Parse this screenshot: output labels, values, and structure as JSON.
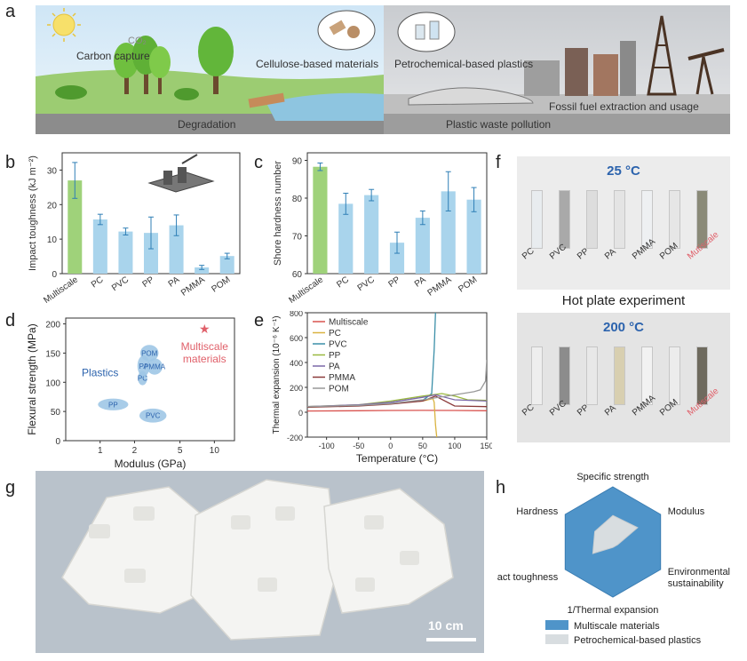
{
  "panel_labels": {
    "a": "a",
    "b": "b",
    "c": "c",
    "d": "d",
    "e": "e",
    "f": "f",
    "g": "g",
    "h": "h"
  },
  "panel_a": {
    "carbon_capture": "Carbon capture",
    "cellulose": "Cellulose-based materials",
    "petrochemical": "Petrochemical-based plastics",
    "degradation": "Degradation",
    "waste": "Plastic waste pollution",
    "fossil": "Fossil fuel extraction and usage",
    "co2": "CO₂"
  },
  "panel_f": {
    "temp_top": "25 °C",
    "temp_bottom": "200 °C",
    "hot_plate": "Hot plate experiment",
    "samples": [
      "PC",
      "PVC",
      "PP",
      "PA",
      "PMMA",
      "POM",
      "Mutiscale"
    ]
  },
  "panel_g": {
    "scale": "10 cm"
  },
  "colors": {
    "multiscale": "#9fd27a",
    "plastics": "#a9d4ec",
    "multiscale_radar": "#4f94c9",
    "plastics_radar": "#d8dde0",
    "accent_red": "#e0606a",
    "blue_text": "#2c63ad"
  },
  "chart_data": [
    {
      "id": "b",
      "type": "bar",
      "ylabel": "Impact toughness (kJ m⁻²)",
      "categories": [
        "Multiscale",
        "PC",
        "PVC",
        "PP",
        "PA",
        "PMMA",
        "POM"
      ],
      "values": [
        27,
        15.7,
        12.2,
        11.8,
        14,
        1.8,
        5.1
      ],
      "errors": [
        5.2,
        1.5,
        1.0,
        4.6,
        3.0,
        0.6,
        0.8
      ],
      "ylim": [
        0,
        35
      ],
      "yticks": [
        0,
        10,
        20,
        30
      ]
    },
    {
      "id": "c",
      "type": "bar",
      "ylabel": "Shore hardness number",
      "categories": [
        "Multiscale",
        "PC",
        "PVC",
        "PP",
        "PA",
        "PMMA",
        "POM"
      ],
      "values": [
        88.3,
        78.5,
        80.8,
        68.2,
        74.8,
        81.8,
        79.6
      ],
      "errors": [
        1.0,
        2.8,
        1.5,
        2.8,
        1.8,
        5.2,
        3.2
      ],
      "ylim": [
        60,
        92
      ],
      "yticks": [
        60,
        70,
        80,
        90
      ]
    },
    {
      "id": "d",
      "type": "scatter",
      "xlabel": "Modulus (GPa)",
      "ylabel": "Flexural strength (MPa)",
      "xscale": "log",
      "xlim": [
        0.5,
        15
      ],
      "ylim": [
        0,
        210
      ],
      "xticks": [
        1,
        2,
        5,
        10
      ],
      "yticks": [
        0,
        50,
        100,
        150,
        200
      ],
      "regions": [
        {
          "name": "PP",
          "x": 1.3,
          "y": 62,
          "rx_lo": 0.95,
          "rx_hi": 1.75,
          "ry": 10
        },
        {
          "name": "PVC",
          "x": 2.9,
          "y": 43,
          "rx_lo": 2.2,
          "rx_hi": 3.8,
          "ry": 12
        },
        {
          "name": "PC",
          "x": 2.35,
          "y": 107,
          "rx_lo": 2.15,
          "rx_hi": 2.6,
          "ry": 12
        },
        {
          "name": "PA",
          "x": 2.4,
          "y": 128,
          "rx_lo": 2.15,
          "rx_hi": 2.75,
          "ry": 18
        },
        {
          "name": "PMMA",
          "x": 3.0,
          "y": 127,
          "rx_lo": 2.55,
          "rx_hi": 3.5,
          "ry": 14
        },
        {
          "name": "POM",
          "x": 2.7,
          "y": 150,
          "rx_lo": 2.25,
          "rx_hi": 3.25,
          "ry": 14
        }
      ],
      "plastics_label": "Plastics",
      "multiscale_label": "Multiscale materials",
      "multiscale_point": {
        "x": 8.2,
        "y": 192
      }
    },
    {
      "id": "e",
      "type": "line",
      "xlabel": "Temperature (°C)",
      "ylabel": "Thermal expansion (10⁻⁶ K⁻¹)",
      "xlim": [
        -130,
        150
      ],
      "ylim": [
        -200,
        800
      ],
      "xticks": [
        -100,
        -50,
        0,
        50,
        100,
        150
      ],
      "yticks": [
        -200,
        0,
        200,
        400,
        600,
        800
      ],
      "series": [
        {
          "name": "Multiscale",
          "color": "#d9534f",
          "x": [
            -130,
            -50,
            0,
            50,
            100,
            150
          ],
          "y": [
            10,
            12,
            14,
            15,
            14,
            12
          ]
        },
        {
          "name": "PC",
          "color": "#d9b340",
          "x": [
            -130,
            -50,
            0,
            50,
            66,
            68,
            70,
            72
          ],
          "y": [
            40,
            55,
            70,
            90,
            110,
            80,
            -100,
            -200
          ]
        },
        {
          "name": "PVC",
          "color": "#3b8fa8",
          "x": [
            -130,
            -50,
            0,
            50,
            64,
            68,
            70
          ],
          "y": [
            42,
            55,
            70,
            95,
            150,
            500,
            800
          ]
        },
        {
          "name": "PP",
          "color": "#9ab840",
          "x": [
            -130,
            -50,
            0,
            50,
            80,
            100,
            120,
            150
          ],
          "y": [
            45,
            60,
            90,
            130,
            150,
            130,
            100,
            95
          ]
        },
        {
          "name": "PA",
          "color": "#7b68a8",
          "x": [
            -130,
            -50,
            0,
            50,
            70,
            100,
            150
          ],
          "y": [
            45,
            60,
            80,
            120,
            140,
            100,
            90
          ]
        },
        {
          "name": "PMMA",
          "color": "#8b3a3a",
          "x": [
            -130,
            -50,
            0,
            50,
            70,
            100,
            150
          ],
          "y": [
            40,
            50,
            65,
            90,
            130,
            50,
            45
          ]
        },
        {
          "name": "POM",
          "color": "#999999",
          "x": [
            -130,
            -50,
            0,
            50,
            100,
            130,
            140,
            148,
            150
          ],
          "y": [
            45,
            55,
            70,
            100,
            140,
            165,
            180,
            250,
            420
          ]
        }
      ]
    },
    {
      "id": "h",
      "type": "radar",
      "axes": [
        "Specific strength",
        "Modulus",
        "Environmental sustainability",
        "1/Thermal expansion",
        "Impact toughness",
        "Hardness"
      ],
      "series": [
        {
          "name": "Multiscale materials",
          "values": [
            1,
            1,
            1,
            1,
            1,
            1
          ]
        },
        {
          "name": "Petrochemical-based plastics",
          "values": [
            0.48,
            0.52,
            0.1,
            0.1,
            0.42,
            0.38
          ]
        }
      ]
    }
  ]
}
